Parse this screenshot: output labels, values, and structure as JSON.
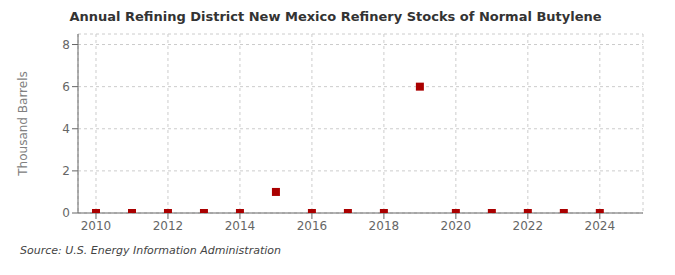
{
  "chart_data": {
    "type": "scatter",
    "title": "Annual Refining District New Mexico Refinery Stocks of Normal Butylene",
    "ylabel": "Thousand Barrels",
    "source": "Source: U.S. Energy Information Administration",
    "x": [
      2010,
      2011,
      2012,
      2013,
      2014,
      2015,
      2016,
      2017,
      2018,
      2019,
      2020,
      2021,
      2022,
      2023,
      2024
    ],
    "values": [
      0,
      0,
      0,
      0,
      0,
      1.0,
      0,
      0,
      0,
      6.0,
      0,
      0,
      0,
      0,
      0
    ],
    "color": "#aa0000",
    "marker": "square",
    "xlim": [
      2009.5,
      2025.2
    ],
    "xticks": [
      2010,
      2012,
      2014,
      2016,
      2018,
      2020,
      2022,
      2024
    ],
    "ylim": [
      0,
      8.5
    ],
    "yticks": [
      0,
      2,
      4,
      6,
      8
    ],
    "grid": true
  }
}
